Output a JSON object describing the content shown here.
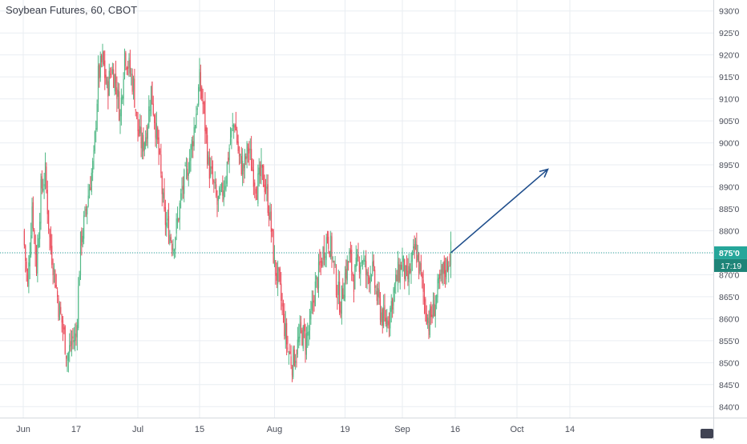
{
  "header": {
    "title": "Soybean Futures, 60, CBOT"
  },
  "colors": {
    "up": "#53b987",
    "down": "#eb4d5c",
    "grid": "#e9edf2",
    "axis_text": "#4a4e59",
    "price_line": "#26a69a",
    "price_tag_bg": "#26a69a",
    "time_tag_bg": "#1e8478",
    "arrow": "#1f4e8c",
    "watermark": "#1e2235"
  },
  "chart_data": {
    "type": "candlestick",
    "symbol": "Soybean Futures",
    "interval": "60",
    "exchange": "CBOT",
    "ylim": [
      837.5,
      932.5
    ],
    "y_ticks": [
      "840'0",
      "845'0",
      "850'0",
      "855'0",
      "860'0",
      "865'0",
      "870'0",
      "875'0",
      "880'0",
      "885'0",
      "890'0",
      "895'0",
      "900'0",
      "905'0",
      "910'0",
      "915'0",
      "920'0",
      "925'0",
      "930'0"
    ],
    "y_tick_values": [
      840,
      845,
      850,
      855,
      860,
      865,
      870,
      875,
      880,
      885,
      890,
      895,
      900,
      905,
      910,
      915,
      920,
      925,
      930
    ],
    "x_ticks": [
      {
        "label": "Jun",
        "day": 0
      },
      {
        "label": "17",
        "day": 12
      },
      {
        "label": "Jul",
        "day": 26
      },
      {
        "label": "15",
        "day": 40
      },
      {
        "label": "Aug",
        "day": 57
      },
      {
        "label": "19",
        "day": 73
      },
      {
        "label": "Sep",
        "day": 86
      },
      {
        "label": "16",
        "day": 98
      },
      {
        "label": "Oct",
        "day": 112
      },
      {
        "label": "14",
        "day": 124
      }
    ],
    "current_price": {
      "value": 875,
      "label": "875'0",
      "countdown": "17:19"
    },
    "projection_arrow": {
      "from": {
        "day": 97,
        "price": 875
      },
      "to": {
        "day": 119,
        "price": 894
      }
    },
    "close_path": [
      {
        "day": 0,
        "price": 880
      },
      {
        "day": 1,
        "price": 867
      },
      {
        "day": 2,
        "price": 886
      },
      {
        "day": 3,
        "price": 872
      },
      {
        "day": 4,
        "price": 889
      },
      {
        "day": 5,
        "price": 893
      },
      {
        "day": 6,
        "price": 878
      },
      {
        "day": 7,
        "price": 871
      },
      {
        "day": 8,
        "price": 863
      },
      {
        "day": 9,
        "price": 858
      },
      {
        "day": 10,
        "price": 851
      },
      {
        "day": 11,
        "price": 855
      },
      {
        "day": 12,
        "price": 856
      },
      {
        "day": 13,
        "price": 877
      },
      {
        "day": 14,
        "price": 883
      },
      {
        "day": 15,
        "price": 890
      },
      {
        "day": 16,
        "price": 896
      },
      {
        "day": 17,
        "price": 915
      },
      {
        "day": 18,
        "price": 919
      },
      {
        "day": 19,
        "price": 912
      },
      {
        "day": 20,
        "price": 917
      },
      {
        "day": 21,
        "price": 914
      },
      {
        "day": 22,
        "price": 906
      },
      {
        "day": 23,
        "price": 921
      },
      {
        "day": 24,
        "price": 917
      },
      {
        "day": 25,
        "price": 913
      },
      {
        "day": 26,
        "price": 903
      },
      {
        "day": 27,
        "price": 899
      },
      {
        "day": 28,
        "price": 903
      },
      {
        "day": 29,
        "price": 912
      },
      {
        "day": 30,
        "price": 904
      },
      {
        "day": 31,
        "price": 895
      },
      {
        "day": 32,
        "price": 883
      },
      {
        "day": 33,
        "price": 880
      },
      {
        "day": 34,
        "price": 877
      },
      {
        "day": 35,
        "price": 882
      },
      {
        "day": 36,
        "price": 889
      },
      {
        "day": 37,
        "price": 893
      },
      {
        "day": 38,
        "price": 898
      },
      {
        "day": 39,
        "price": 905
      },
      {
        "day": 40,
        "price": 914
      },
      {
        "day": 41,
        "price": 907
      },
      {
        "day": 42,
        "price": 895
      },
      {
        "day": 43,
        "price": 891
      },
      {
        "day": 44,
        "price": 886
      },
      {
        "day": 45,
        "price": 888
      },
      {
        "day": 46,
        "price": 893
      },
      {
        "day": 47,
        "price": 901
      },
      {
        "day": 48,
        "price": 905
      },
      {
        "day": 49,
        "price": 896
      },
      {
        "day": 50,
        "price": 894
      },
      {
        "day": 51,
        "price": 899
      },
      {
        "day": 52,
        "price": 894
      },
      {
        "day": 53,
        "price": 890
      },
      {
        "day": 54,
        "price": 893
      },
      {
        "day": 55,
        "price": 890
      },
      {
        "day": 56,
        "price": 883
      },
      {
        "day": 57,
        "price": 872
      },
      {
        "day": 58,
        "price": 868
      },
      {
        "day": 59,
        "price": 860
      },
      {
        "day": 60,
        "price": 853
      },
      {
        "day": 61,
        "price": 850
      },
      {
        "day": 62,
        "price": 853
      },
      {
        "day": 63,
        "price": 857
      },
      {
        "day": 64,
        "price": 855
      },
      {
        "day": 65,
        "price": 858
      },
      {
        "day": 66,
        "price": 866
      },
      {
        "day": 67,
        "price": 870
      },
      {
        "day": 68,
        "price": 875
      },
      {
        "day": 69,
        "price": 879
      },
      {
        "day": 70,
        "price": 875
      },
      {
        "day": 71,
        "price": 868
      },
      {
        "day": 72,
        "price": 863
      },
      {
        "day": 73,
        "price": 870
      },
      {
        "day": 74,
        "price": 874
      },
      {
        "day": 75,
        "price": 869
      },
      {
        "day": 76,
        "price": 873
      },
      {
        "day": 77,
        "price": 874
      },
      {
        "day": 78,
        "price": 869
      },
      {
        "day": 79,
        "price": 872
      },
      {
        "day": 80,
        "price": 866
      },
      {
        "day": 81,
        "price": 862
      },
      {
        "day": 82,
        "price": 859
      },
      {
        "day": 83,
        "price": 861
      },
      {
        "day": 84,
        "price": 866
      },
      {
        "day": 85,
        "price": 870
      },
      {
        "day": 86,
        "price": 873
      },
      {
        "day": 87,
        "price": 868
      },
      {
        "day": 88,
        "price": 872
      },
      {
        "day": 89,
        "price": 876
      },
      {
        "day": 90,
        "price": 871
      },
      {
        "day": 91,
        "price": 864
      },
      {
        "day": 92,
        "price": 859
      },
      {
        "day": 93,
        "price": 862
      },
      {
        "day": 94,
        "price": 866
      },
      {
        "day": 95,
        "price": 870
      },
      {
        "day": 96,
        "price": 872
      },
      {
        "day": 97,
        "price": 875
      }
    ],
    "grid": true
  }
}
